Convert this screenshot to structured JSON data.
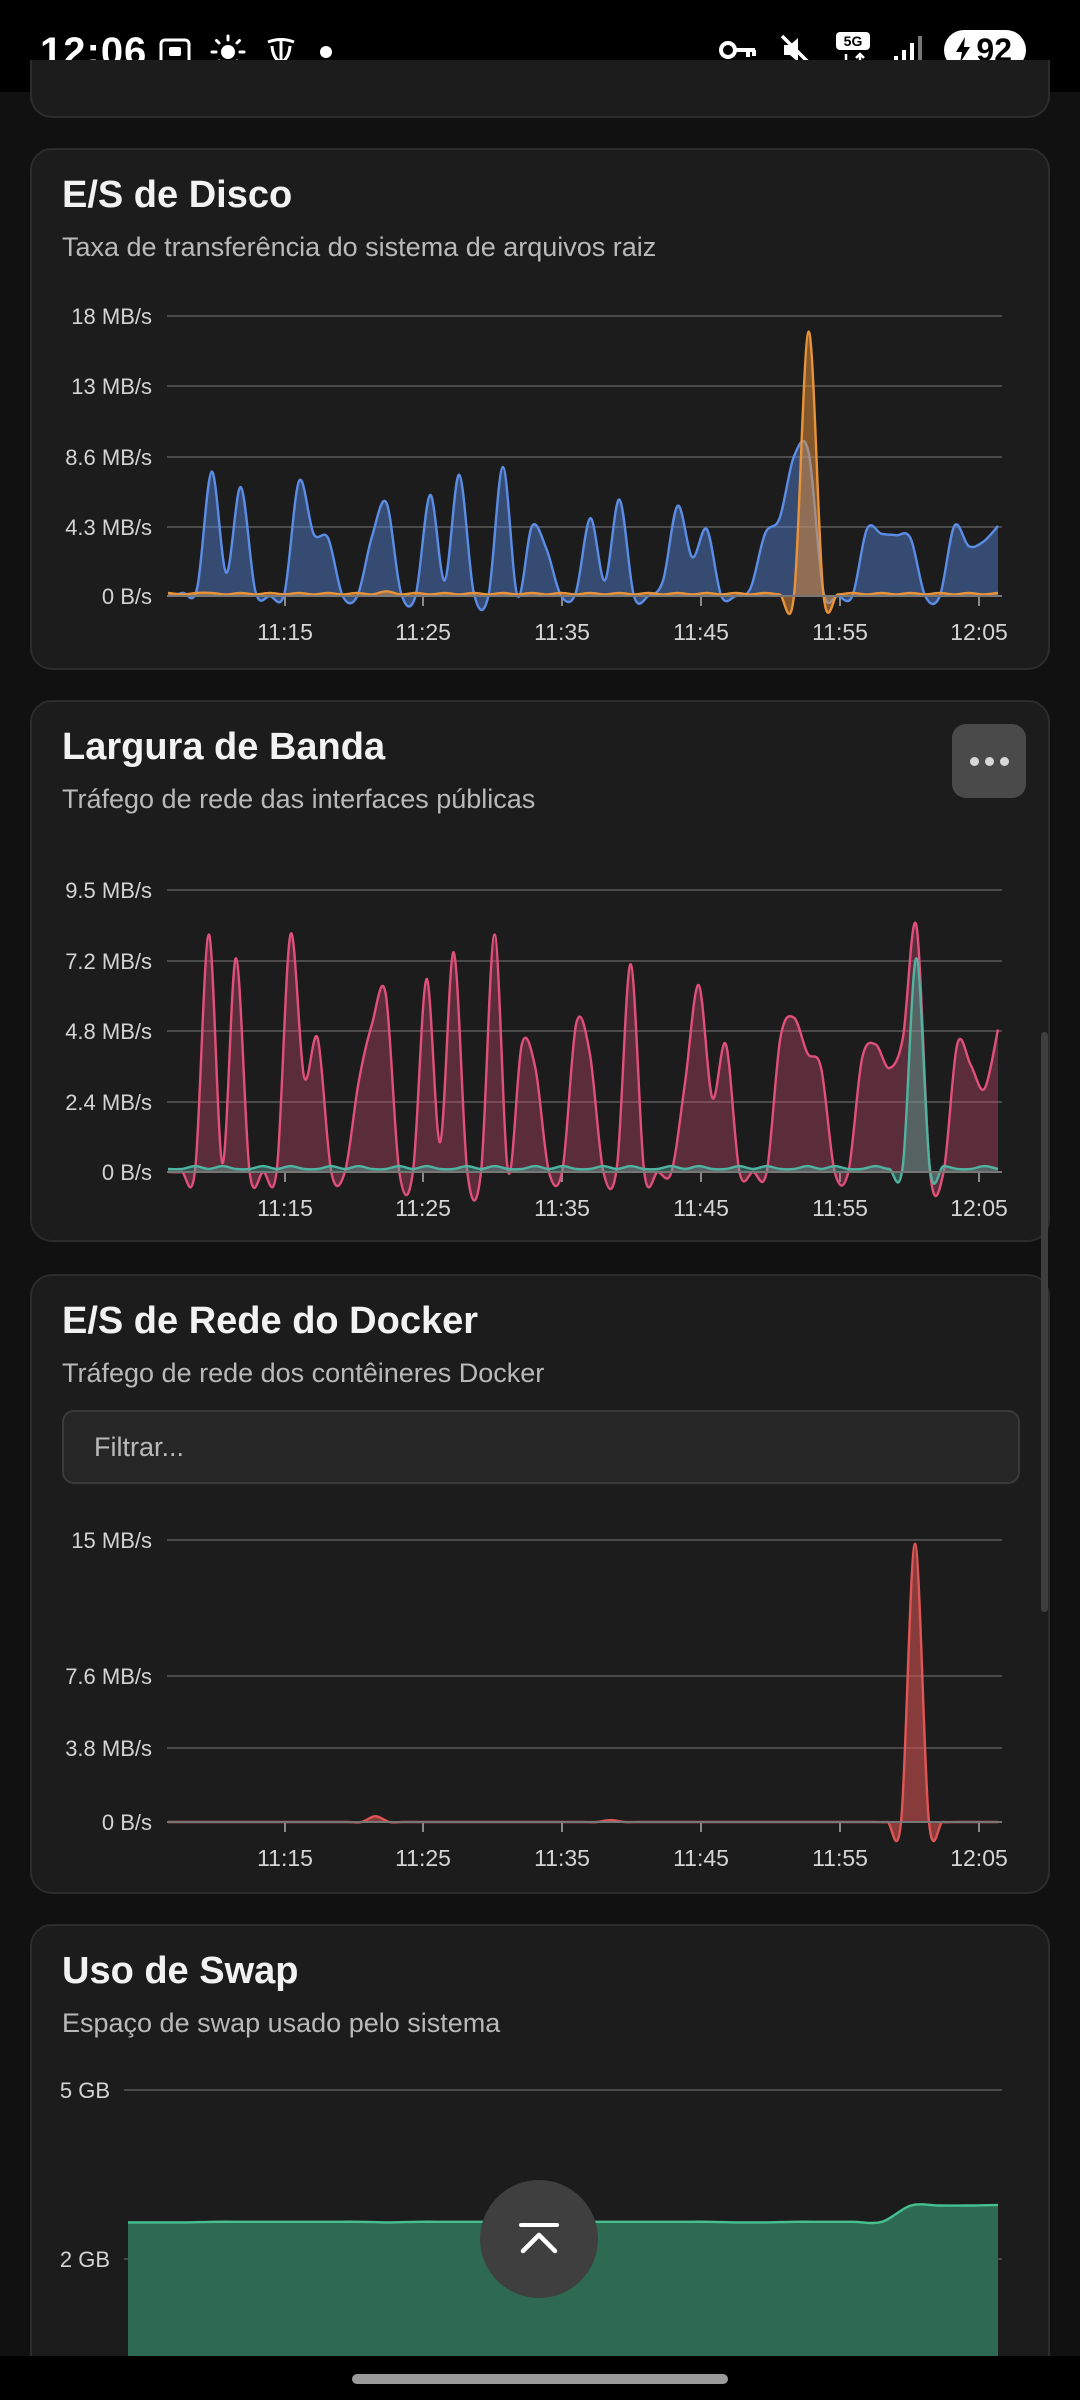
{
  "status_bar": {
    "time": "12:06",
    "battery": "92",
    "network": "5G"
  },
  "cards": {
    "disk_io": {
      "title": "E/S de Disco",
      "subtitle": "Taxa de transferência do sistema de arquivos raiz"
    },
    "bandwidth": {
      "title": "Largura de Banda",
      "subtitle": "Tráfego de rede das interfaces públicas"
    },
    "docker_net": {
      "title": "E/S de Rede do Docker",
      "subtitle": "Tráfego de rede dos contêineres Docker",
      "filter_placeholder": "Filtrar..."
    },
    "swap": {
      "title": "Uso de Swap",
      "subtitle": "Espaço de swap usado pelo sistema"
    }
  },
  "chart_data": [
    {
      "type": "area",
      "x_ticks": [
        "11:15",
        "11:25",
        "11:35",
        "11:45",
        "11:55",
        "12:05"
      ],
      "y_ticks": [
        "18 MB/s",
        "13 MB/s",
        "8.6 MB/s",
        "4.3 MB/s",
        "0 B/s"
      ],
      "ylim": [
        0,
        18
      ],
      "colors": {
        "read": "#5b8de6",
        "write": "#e8923a"
      },
      "series": [
        {
          "values": [
            0,
            0.2,
            0.5,
            8,
            1.5,
            7,
            0.3,
            0,
            0.2,
            7.4,
            4,
            3.7,
            0,
            0,
            3.8,
            6,
            0.2,
            0,
            6.5,
            1,
            7.8,
            0.2,
            0,
            8.3,
            0,
            4.5,
            3,
            0,
            0.2,
            5,
            1,
            6.2,
            0,
            0,
            1,
            5.8,
            2.5,
            4.3,
            0,
            0,
            0.5,
            4,
            5,
            9,
            9.2,
            0.3,
            0,
            0,
            4.3,
            4,
            3.9,
            3.7,
            0,
            0,
            4.5,
            3.2,
            3.5,
            4.5
          ]
        },
        {
          "values": [
            0.2,
            0.1,
            0.2,
            0.2,
            0.1,
            0.2,
            0.1,
            0.2,
            0.1,
            0.2,
            0.1,
            0.2,
            0.1,
            0.2,
            0.1,
            0.3,
            0.1,
            0.2,
            0.1,
            0.2,
            0.1,
            0.2,
            0.1,
            0.2,
            0.1,
            0.2,
            0.1,
            0.2,
            0.1,
            0.2,
            0.1,
            0.2,
            0.1,
            0.2,
            0.1,
            0.2,
            0.1,
            0.2,
            0.1,
            0.2,
            0.1,
            0.2,
            0.1,
            0.1,
            17,
            0.2,
            0.1,
            0.2,
            0.1,
            0.2,
            0.1,
            0.2,
            0.1,
            0.2,
            0.1,
            0.2,
            0.1,
            0.2
          ]
        }
      ]
    },
    {
      "type": "area",
      "x_ticks": [
        "11:15",
        "11:25",
        "11:35",
        "11:45",
        "11:55",
        "12:05"
      ],
      "y_ticks": [
        "9.5 MB/s",
        "7.2 MB/s",
        "4.8 MB/s",
        "2.4 MB/s",
        "0 B/s"
      ],
      "ylim": [
        0,
        9.5
      ],
      "colors": {
        "rx": "#e0507a",
        "tx": "#4fb3a0"
      },
      "series": [
        {
          "values": [
            0,
            0,
            0.1,
            8,
            0.3,
            7.2,
            0,
            0,
            0.1,
            8,
            3.2,
            4.5,
            0,
            0,
            3,
            5,
            6,
            0,
            0,
            6.5,
            1,
            7.4,
            0,
            0,
            8,
            0,
            4.3,
            3.5,
            0,
            0.1,
            5,
            4,
            0,
            0.2,
            7,
            0,
            0,
            0,
            3,
            6.3,
            2.5,
            4.3,
            0,
            0,
            0,
            4.5,
            5.2,
            4,
            3.5,
            0,
            0,
            3.8,
            4.3,
            3.5,
            4.5,
            8.3,
            0,
            0,
            4.3,
            3.6,
            2.8,
            4.8
          ]
        },
        {
          "values": [
            0.1,
            0.1,
            0.2,
            0.1,
            0.2,
            0.1,
            0.1,
            0.2,
            0.1,
            0.2,
            0.1,
            0.1,
            0.2,
            0.1,
            0.2,
            0.1,
            0.1,
            0.2,
            0.1,
            0.2,
            0.1,
            0.1,
            0.2,
            0.1,
            0.2,
            0.1,
            0.1,
            0.2,
            0.1,
            0.2,
            0.1,
            0.1,
            0.2,
            0.1,
            0.2,
            0.1,
            0.1,
            0.2,
            0.1,
            0.2,
            0.1,
            0.1,
            0.2,
            0.1,
            0.2,
            0.1,
            0.1,
            0.2,
            0.1,
            0.2,
            0.1,
            0.1,
            0.2,
            0.1,
            0.2,
            7.2,
            0.1,
            0.2,
            0.1,
            0.1,
            0.2,
            0.1
          ]
        }
      ]
    },
    {
      "type": "area",
      "x_ticks": [
        "11:15",
        "11:25",
        "11:35",
        "11:45",
        "11:55",
        "12:05"
      ],
      "y_ticks": [
        "15 MB/s",
        "7.6 MB/s",
        "3.8 MB/s",
        "0 B/s"
      ],
      "ylim": [
        0,
        15
      ],
      "colors": {
        "net": "#e05555"
      },
      "series": [
        {
          "values": [
            0,
            0,
            0,
            0,
            0,
            0,
            0,
            0,
            0,
            0,
            0,
            0,
            0,
            0,
            0,
            0.3,
            0,
            0,
            0,
            0,
            0,
            0,
            0,
            0,
            0,
            0,
            0,
            0,
            0,
            0,
            0,
            0,
            0.1,
            0,
            0,
            0,
            0,
            0,
            0,
            0,
            0,
            0,
            0,
            0,
            0,
            0,
            0,
            0,
            0,
            0,
            0,
            0,
            0,
            0.1,
            14.8,
            0.1,
            0,
            0,
            0,
            0,
            0
          ]
        }
      ]
    },
    {
      "type": "area",
      "y_ticks": [
        "5 GB",
        "2 GB"
      ],
      "ylim": [
        0,
        5
      ],
      "colors": {
        "swap": "#2e6a52",
        "swap_line": "#46c08f"
      },
      "series": [
        {
          "values": [
            2.65,
            2.65,
            2.65,
            2.66,
            2.66,
            2.66,
            2.66,
            2.66,
            2.66,
            2.65,
            2.66,
            2.66,
            2.66,
            2.66,
            2.66,
            2.66,
            2.66,
            2.66,
            2.66,
            2.66,
            2.66,
            2.65,
            2.65,
            2.66,
            2.66,
            2.66,
            2.66,
            2.95,
            2.95,
            2.95,
            2.96
          ]
        }
      ]
    }
  ]
}
